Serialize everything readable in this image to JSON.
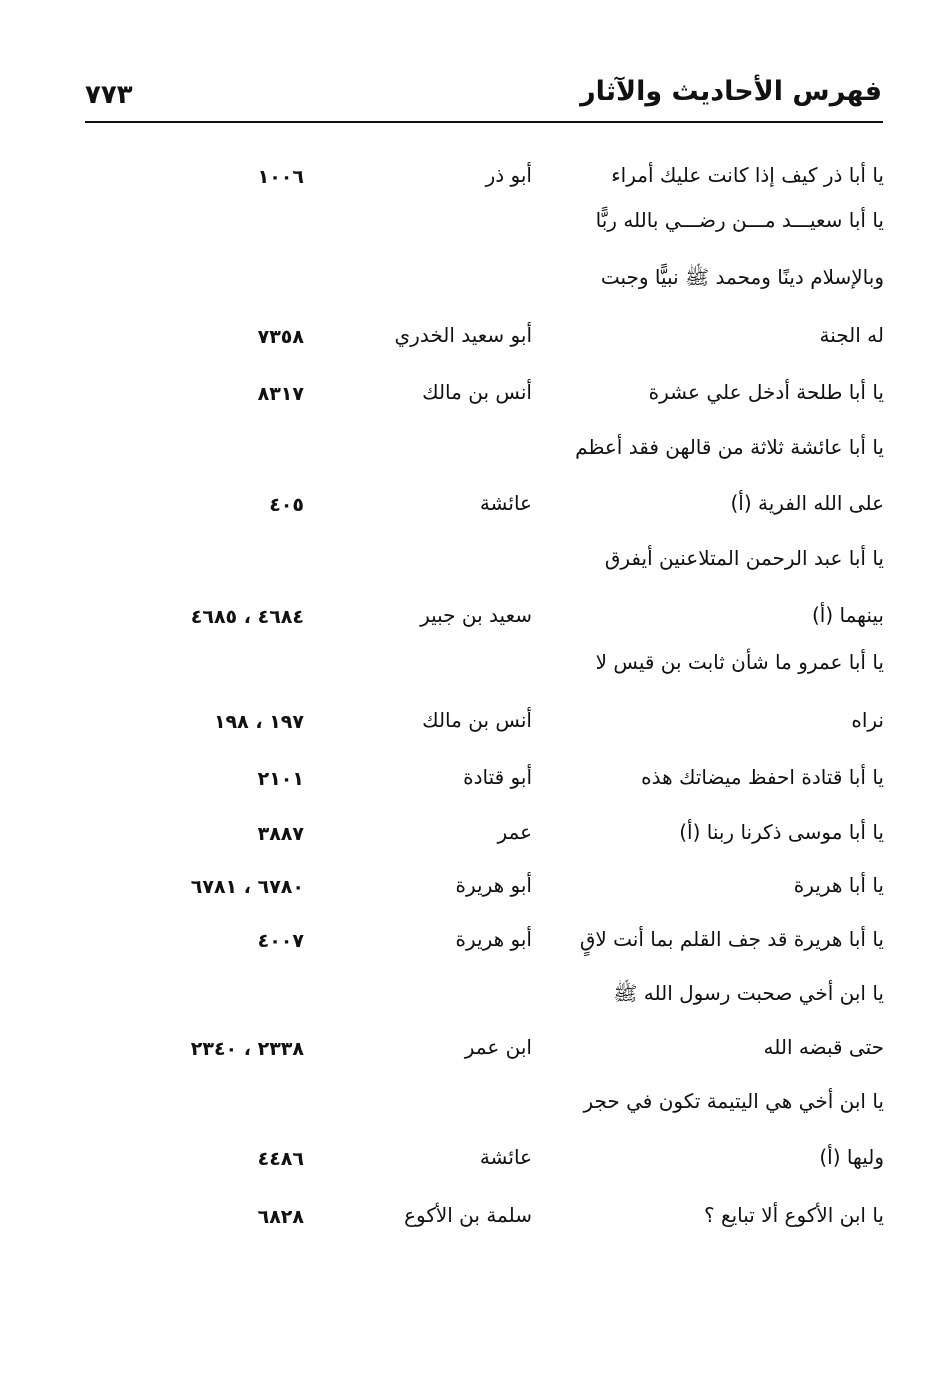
{
  "header": {
    "title": "فهرس الأحاديث والآثار",
    "page_number": "٧٧٣"
  },
  "entries": [
    {
      "text": "يا أبا ذر كيف إذا كانت عليك أمراء",
      "narrator": "أبو ذر",
      "refs": "١٠٠٦"
    },
    {
      "text": "يا أبا سعيـــد مـــن رضـــي بالله ربًّا",
      "narrator": "",
      "refs": ""
    },
    {
      "text": "وبالإسلام دينًا ومحمد ﷺ نبيًّا وجبت",
      "narrator": "",
      "refs": ""
    },
    {
      "text": "له الجنة",
      "narrator": "أبو سعيد الخدري",
      "refs": "٧٣٥٨"
    },
    {
      "text": "يا أبا طلحة أدخل علي عشرة",
      "narrator": "أنس بن مالك",
      "refs": "٨٣١٧"
    },
    {
      "text": "يا أبا عائشة ثلاثة من قالهن فقد أعظم",
      "narrator": "",
      "refs": ""
    },
    {
      "text": "على الله الفرية (أ)",
      "narrator": "عائشة",
      "refs": "٤٠٥"
    },
    {
      "text": "يا أبا عبد الرحمن المتلاعنين أيفرق",
      "narrator": "",
      "refs": ""
    },
    {
      "text": "بينهما (أ)",
      "narrator": "سعيد بن جبير",
      "refs": "٤٦٨٤ ، ٤٦٨٥"
    },
    {
      "text": "يا أبا عمرو ما شأن ثابت بن قيس لا",
      "narrator": "",
      "refs": ""
    },
    {
      "text": "نراه",
      "narrator": "أنس بن مالك",
      "refs": "١٩٧ ، ١٩٨"
    },
    {
      "text": "يا أبا قتادة احفظ ميضاتك هذه",
      "narrator": "أبو قتادة",
      "refs": "٢١٠١"
    },
    {
      "text": "يا أبا موسى ذكرنا ربنا (أ)",
      "narrator": "عمر",
      "refs": "٣٨٨٧"
    },
    {
      "text": "يا أبا هريرة",
      "narrator": "أبو هريرة",
      "refs": "٦٧٨٠ ، ٦٧٨١"
    },
    {
      "text": "يا أبا هريرة قد جف القلم بما أنت لاقٍ",
      "narrator": "أبو هريرة",
      "refs": "٤٠٠٧"
    },
    {
      "text": "يا ابن أخي صحبت رسول الله ﷺ",
      "narrator": "",
      "refs": ""
    },
    {
      "text": "حتى قبضه الله",
      "narrator": "ابن عمر",
      "refs": "٢٣٣٨ ، ٢٣٤٠"
    },
    {
      "text": "يا ابن أخي هي اليتيمة تكون في حجر",
      "narrator": "",
      "refs": ""
    },
    {
      "text": "وليها (أ)",
      "narrator": "عائشة",
      "refs": "٤٤٨٦"
    },
    {
      "text": "يا ابن الأكوع ألا تبايع ؟",
      "narrator": "سلمة بن الأكوع",
      "refs": "٦٨٢٨"
    }
  ]
}
